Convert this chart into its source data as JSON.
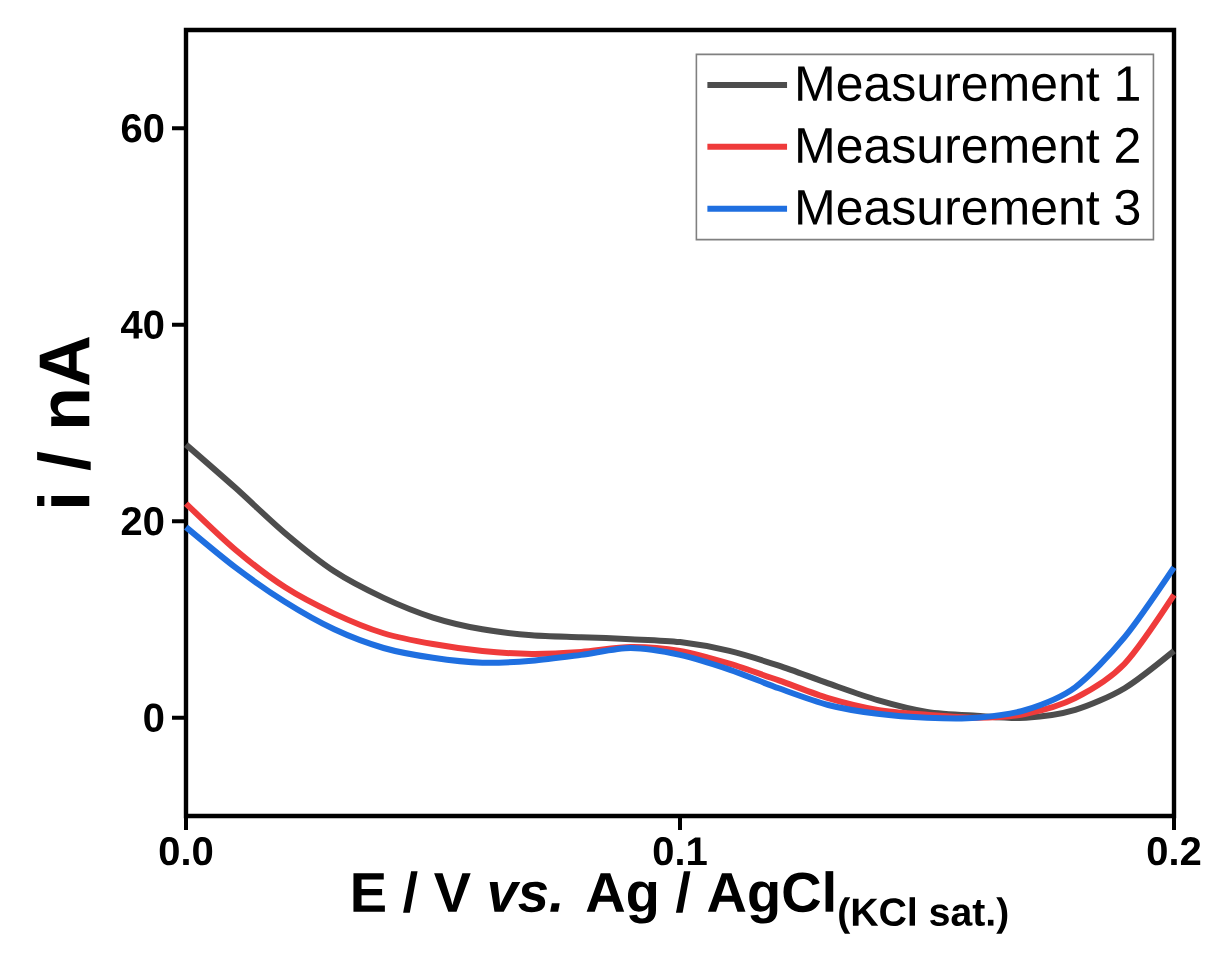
{
  "chart_data": {
    "type": "line",
    "xlabel": "\\textbf{E / V \\textit{vs.} Ag / AgCl}_{\\textbf{(KCl sat.)}}",
    "ylabel": "i / nA",
    "x": [
      0,
      0.01,
      0.02,
      0.03,
      0.04,
      0.05,
      0.06,
      0.07,
      0.08,
      0.09,
      0.1,
      0.11,
      0.12,
      0.13,
      0.14,
      0.15,
      0.16,
      0.17,
      0.18,
      0.19,
      0.2
    ],
    "series": [
      {
        "name": "Measurement 1",
        "color": "#4d4d4d",
        "values": [
          27.8,
          23.4,
          18.8,
          14.9,
          12.2,
          10.2,
          9.0,
          8.4,
          8.2,
          8.0,
          7.7,
          6.8,
          5.3,
          3.5,
          1.8,
          0.6,
          0.2,
          0,
          0.8,
          3.0,
          6.8
        ]
      },
      {
        "name": "Measurement 2",
        "color": "#ef3b3b",
        "values": [
          21.8,
          17.1,
          13.3,
          10.6,
          8.6,
          7.5,
          6.8,
          6.5,
          6.7,
          7.2,
          6.8,
          5.5,
          3.8,
          2.0,
          0.8,
          0.3,
          0,
          0.4,
          2.0,
          5.5,
          12.5
        ]
      },
      {
        "name": "Measurement 3",
        "color": "#1f6fe0",
        "values": [
          19.4,
          15.3,
          11.8,
          9.0,
          7.1,
          6.1,
          5.6,
          5.8,
          6.4,
          7.1,
          6.4,
          4.9,
          3.0,
          1.3,
          0.4,
          0,
          0,
          0.8,
          3.1,
          8.2,
          15.3
        ]
      }
    ],
    "xlim": [
      0,
      0.2
    ],
    "xticks": [
      {
        "value": 0,
        "label": "0.0"
      },
      0.1,
      0.2
    ],
    "ylim": [
      -10,
      70
    ],
    "yticks": [
      0,
      20,
      40,
      60
    ],
    "legend": "top right",
    "grid": false,
    "marker": "none",
    "line_style": "solid"
  }
}
